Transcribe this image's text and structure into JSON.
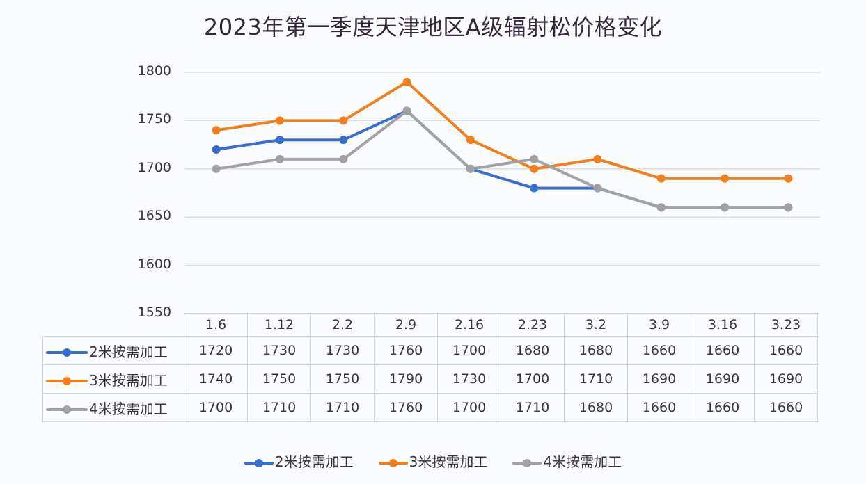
{
  "chart_data": {
    "type": "line",
    "title": "2023年第一季度天津地区A级辐射松价格变化",
    "xlabel": "",
    "ylabel": "",
    "categories": [
      "1.6",
      "1.12",
      "2.2",
      "2.9",
      "2.16",
      "2.23",
      "3.2",
      "3.9",
      "3.16",
      "3.23"
    ],
    "series": [
      {
        "name": "2米按需加工",
        "color": "#3a6fd0",
        "values": [
          1720,
          1730,
          1730,
          1760,
          1700,
          1680,
          1680,
          1660,
          1660,
          1660
        ]
      },
      {
        "name": "3米按需加工",
        "color": "#f07f1e",
        "values": [
          1740,
          1750,
          1750,
          1790,
          1730,
          1700,
          1710,
          1690,
          1690,
          1690
        ]
      },
      {
        "name": "4米按需加工",
        "color": "#a2a2a4",
        "values": [
          1700,
          1710,
          1710,
          1760,
          1700,
          1710,
          1680,
          1660,
          1660,
          1660
        ]
      }
    ],
    "ylim": [
      1550,
      1800
    ],
    "yticks": [
      "1800",
      "1750",
      "1700",
      "1650",
      "1600",
      "1550"
    ],
    "grid": true,
    "legend_position": "bottom",
    "data_table": true
  }
}
